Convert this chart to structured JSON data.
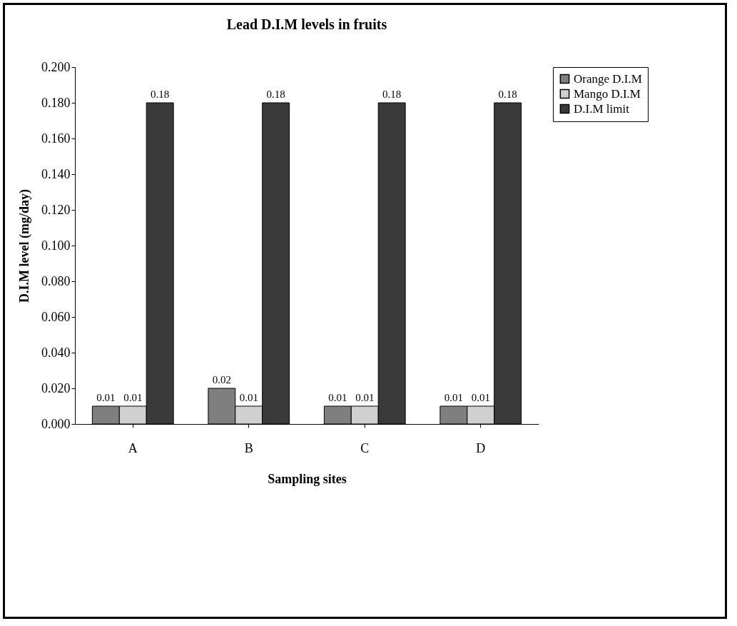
{
  "chart_data": {
    "type": "bar",
    "title": "Lead D.I.M levels in fruits",
    "xlabel": "Sampling sites",
    "ylabel": "D.I.M level (mg/day)",
    "categories": [
      "A",
      "B",
      "C",
      "D"
    ],
    "series": [
      {
        "name": "Orange D.I.M",
        "color": "#7f7f7f",
        "values": [
          0.01,
          0.02,
          0.01,
          0.01
        ]
      },
      {
        "name": "Mango D.I.M",
        "color": "#d0d0d0",
        "values": [
          0.01,
          0.01,
          0.01,
          0.01
        ]
      },
      {
        "name": "D.I.M limit",
        "color": "#3a3a3a",
        "values": [
          0.18,
          0.18,
          0.18,
          0.18
        ]
      }
    ],
    "ylim": [
      0,
      0.2
    ],
    "yticks": [
      {
        "value": 0,
        "label": "0.000"
      },
      {
        "value": 0.02,
        "label": "0.020"
      },
      {
        "value": 0.04,
        "label": "0.040"
      },
      {
        "value": 0.06,
        "label": "0.060"
      },
      {
        "value": 0.08,
        "label": "0.080"
      },
      {
        "value": 0.1,
        "label": "0.100"
      },
      {
        "value": 0.12,
        "label": "0.120"
      },
      {
        "value": 0.14,
        "label": "0.140"
      },
      {
        "value": 0.16,
        "label": "0.160"
      },
      {
        "value": 0.18,
        "label": "0.180"
      },
      {
        "value": 0.2,
        "label": "0.200"
      }
    ],
    "data_labels": true,
    "grid": false,
    "legend": "top right"
  }
}
